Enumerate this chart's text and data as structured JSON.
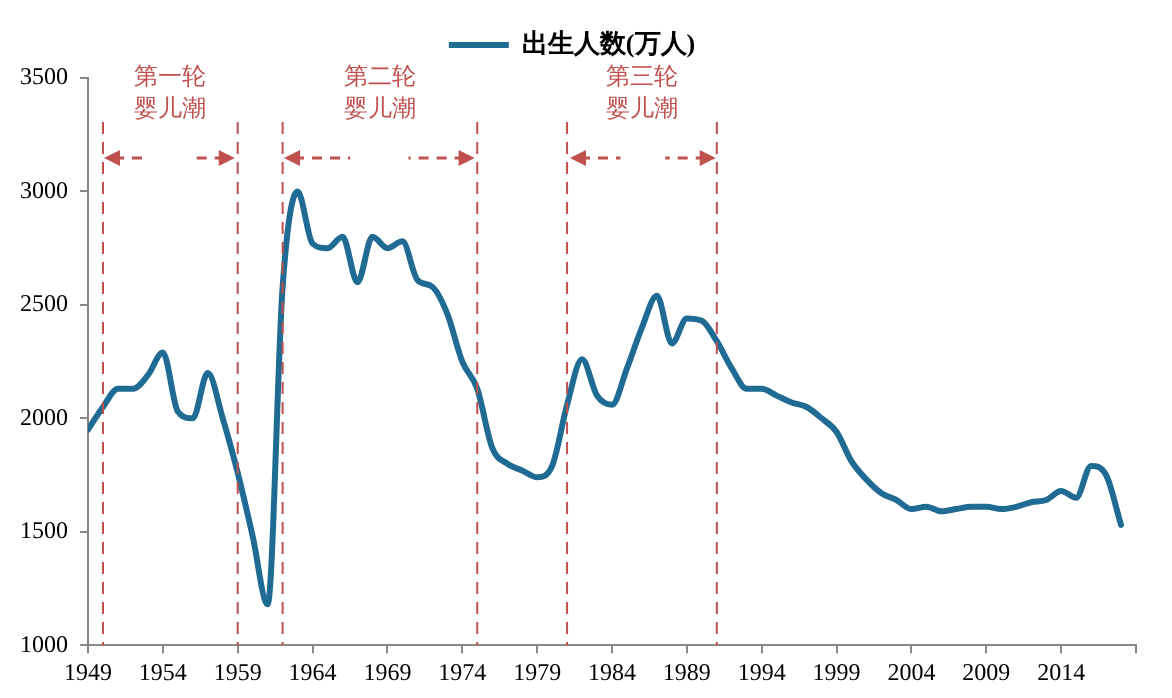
{
  "chart_data": {
    "type": "line",
    "x": [
      1949,
      1950,
      1951,
      1952,
      1953,
      1954,
      1955,
      1956,
      1957,
      1958,
      1959,
      1960,
      1961,
      1962,
      1963,
      1964,
      1965,
      1966,
      1967,
      1968,
      1969,
      1970,
      1971,
      1972,
      1973,
      1974,
      1975,
      1976,
      1977,
      1978,
      1979,
      1980,
      1981,
      1982,
      1983,
      1984,
      1985,
      1986,
      1987,
      1988,
      1989,
      1990,
      1991,
      1992,
      1993,
      1994,
      1995,
      1996,
      1997,
      1998,
      1999,
      2000,
      2001,
      2002,
      2003,
      2004,
      2005,
      2006,
      2007,
      2008,
      2009,
      2010,
      2011,
      2012,
      2013,
      2014,
      2015,
      2016,
      2017,
      2018
    ],
    "series": [
      {
        "name": "出生人数(万人)",
        "color": "#1f6b94",
        "values": [
          1950,
          2050,
          2130,
          2130,
          2190,
          2290,
          2030,
          2000,
          2200,
          2000,
          1760,
          1480,
          1180,
          2580,
          3000,
          2770,
          2750,
          2800,
          2600,
          2800,
          2750,
          2780,
          2610,
          2580,
          2460,
          2250,
          2130,
          1870,
          1800,
          1770,
          1740,
          1790,
          2060,
          2260,
          2100,
          2060,
          2220,
          2400,
          2540,
          2330,
          2440,
          2430,
          2340,
          2220,
          2130,
          2130,
          2100,
          2070,
          2050,
          2000,
          1940,
          1810,
          1730,
          1670,
          1640,
          1600,
          1610,
          1590,
          1600,
          1610,
          1610,
          1600,
          1610,
          1630,
          1640,
          1680,
          1650,
          1790,
          1750,
          1530
        ]
      }
    ],
    "xlim": [
      1949,
      2019
    ],
    "xticks": [
      1949,
      1954,
      1959,
      1964,
      1969,
      1974,
      1979,
      1984,
      1989,
      1994,
      1999,
      2004,
      2009,
      2014,
      {
        "value": 2019,
        "label": null
      }
    ],
    "ylim": [
      1000,
      3500
    ],
    "yticks": [
      1000,
      1500,
      2000,
      2500,
      3000,
      3500
    ],
    "grid": false,
    "legend": "top",
    "marker": "none",
    "line_style": "solid",
    "ref_lines": [
      {
        "axis": "x",
        "value": 1950,
        "color": "#c0504d",
        "line_style": "dashed"
      },
      {
        "axis": "x",
        "value": 1959,
        "color": "#c0504d",
        "line_style": "dashed"
      },
      {
        "axis": "x",
        "value": 1962,
        "color": "#c0504d",
        "line_style": "dashed"
      },
      {
        "axis": "x",
        "value": 1975,
        "color": "#c0504d",
        "line_style": "dashed"
      },
      {
        "axis": "x",
        "value": 1981,
        "color": "#c0504d",
        "line_style": "dashed"
      },
      {
        "axis": "x",
        "value": 1991,
        "color": "#c0504d",
        "line_style": "dashed"
      }
    ],
    "annotations": [
      "第一轮婴儿潮",
      "第二轮婴儿潮",
      "第三轮婴儿潮"
    ]
  }
}
